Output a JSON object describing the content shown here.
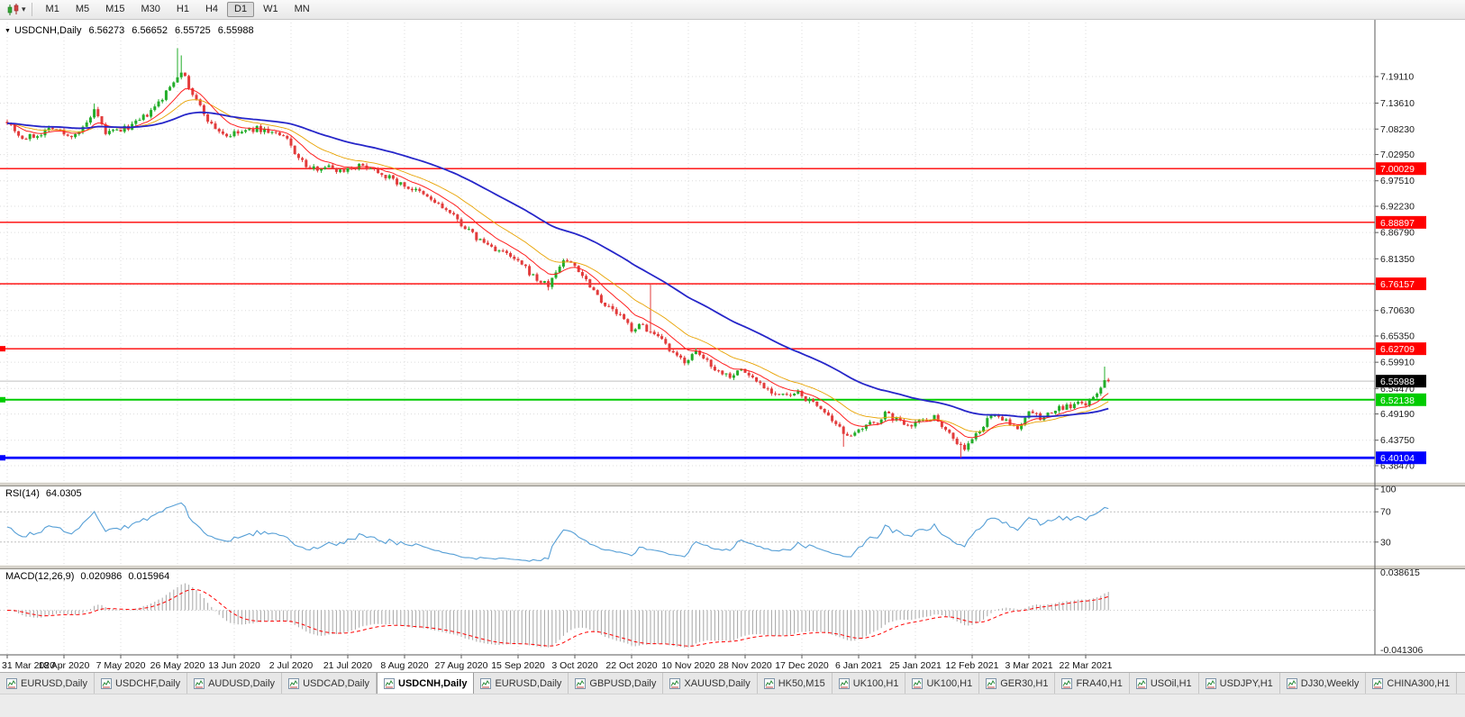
{
  "toolbar": {
    "chart_icon": "candlestick-chart",
    "dropdown_glyph": "▾",
    "timeframes": [
      "M1",
      "M5",
      "M15",
      "M30",
      "H1",
      "H4",
      "D1",
      "W1",
      "MN"
    ],
    "active_timeframe": "D1"
  },
  "chart_header": {
    "collapse_icon": "▼",
    "symbol": "USDCNH,Daily",
    "open": "6.56273",
    "high": "6.56652",
    "low": "6.55725",
    "close": "6.55988"
  },
  "rsi_panel": {
    "label": "RSI(14)",
    "value": "64.0305",
    "axis_labels": [
      "100",
      "70",
      "30"
    ],
    "level_values": [
      100,
      70,
      30
    ],
    "guide_levels": [
      70,
      30
    ],
    "line_color": "#569fd6"
  },
  "macd_panel": {
    "label": "MACD(12,26,9)",
    "value": "0.020986",
    "signal_value": "0.015964",
    "axis_top_label": "0.038615",
    "axis_bottom_label": "-0.041306",
    "histogram_color": "#a6a6a6",
    "signal_color": "#ff0000"
  },
  "colors": {
    "up_candle": "#22ad29",
    "down_candle": "#e23b3b",
    "grid": "#dcdcdc",
    "current_price_line": "#c0c0c0",
    "current_price_badge": "#000000"
  },
  "tabs": [
    "EURUSD,Daily",
    "USDCHF,Daily",
    "AUDUSD,Daily",
    "USDCAD,Daily",
    "USDCNH,Daily",
    "EURUSD,Daily",
    "GBPUSD,Daily",
    "XAUUSD,Daily",
    "HK50,M15",
    "UK100,H1",
    "UK100,H1",
    "GER30,H1",
    "FRA40,H1",
    "USOil,H1",
    "USDJPY,H1",
    "DJ30,Weekly",
    "CHINA300,H1"
  ],
  "active_tab_index": 4,
  "chart_data": {
    "type": "candlestick",
    "title": "USDCNH,Daily",
    "ylim": [
      6.3511,
      7.2975
    ],
    "n_bars": 292,
    "x_label_every": 15,
    "x_labels": [
      "31 Mar 2020",
      "18 Apr 2020",
      "7 May 2020",
      "26 May 2020",
      "13 Jun 2020",
      "2 Jul 2020",
      "21 Jul 2020",
      "8 Aug 2020",
      "27 Aug 2020",
      "15 Sep 2020",
      "3 Oct 2020",
      "22 Oct 2020",
      "10 Nov 2020",
      "28 Nov 2020",
      "17 Dec 2020",
      "6 Jan 2021",
      "25 Jan 2021",
      "12 Feb 2021",
      "3 Mar 2021",
      "22 Mar 2021"
    ],
    "price_grid_values": [
      7.1911,
      7.1361,
      7.0823,
      7.0295,
      6.9751,
      6.9223,
      6.8679,
      6.8135,
      6.7599,
      6.7063,
      6.6535,
      6.5991,
      6.5447,
      6.4919,
      6.4375,
      6.3847
    ],
    "price_grid_labels": [
      "7.19110",
      "7.13610",
      "7.08230",
      "7.02950",
      "6.97510",
      "6.92230",
      "6.86790",
      "6.81350",
      "6.75990",
      "6.70630",
      "6.65350",
      "6.59910",
      "6.54470",
      "6.49190",
      "6.43750",
      "6.38470"
    ],
    "levels": [
      {
        "price": 7.00029,
        "label": "7.00029",
        "color": "#ff0000",
        "width": 1.4,
        "handle": false
      },
      {
        "price": 6.88897,
        "label": "6.88897",
        "color": "#ff0000",
        "width": 1.4,
        "handle": false
      },
      {
        "price": 6.76157,
        "label": "6.76157",
        "color": "#ff0000",
        "width": 1.4,
        "handle": false
      },
      {
        "price": 6.62709,
        "label": "6.62709",
        "color": "#ff0000",
        "width": 1.4,
        "handle": true
      },
      {
        "price": 6.52138,
        "label": "6.52138",
        "color": "#00cc00",
        "width": 2,
        "handle": true
      },
      {
        "price": 6.40104,
        "label": "6.40104",
        "color": "#0000ff",
        "width": 2.8,
        "handle": true
      }
    ],
    "moving_averages": [
      {
        "period": 10,
        "color": "#ff1f1f",
        "width": 1
      },
      {
        "period": 21,
        "color": "#e8a200",
        "width": 0.9
      },
      {
        "period": 55,
        "color": "#2626c9",
        "width": 1.8
      }
    ],
    "rsi": {
      "period": 14,
      "current": 64.0305
    },
    "macd": {
      "fast": 12,
      "slow": 26,
      "signal": 9,
      "value": 0.020986,
      "signal_value": 0.015964,
      "ymax": 0.038615,
      "ymin": -0.041306
    },
    "trend_anchors": [
      [
        0,
        7.1
      ],
      [
        4,
        7.062
      ],
      [
        8,
        7.07
      ],
      [
        12,
        7.088
      ],
      [
        16,
        7.066
      ],
      [
        20,
        7.082
      ],
      [
        23,
        7.118
      ],
      [
        26,
        7.074
      ],
      [
        30,
        7.08
      ],
      [
        34,
        7.094
      ],
      [
        38,
        7.118
      ],
      [
        41,
        7.146
      ],
      [
        44,
        7.182
      ],
      [
        46,
        7.205
      ],
      [
        48,
        7.168
      ],
      [
        51,
        7.128
      ],
      [
        54,
        7.09
      ],
      [
        58,
        7.068
      ],
      [
        62,
        7.076
      ],
      [
        66,
        7.083
      ],
      [
        70,
        7.076
      ],
      [
        74,
        7.06
      ],
      [
        77,
        7.022
      ],
      [
        80,
        6.998
      ],
      [
        84,
        7.006
      ],
      [
        88,
        6.996
      ],
      [
        92,
        7.006
      ],
      [
        96,
        7.004
      ],
      [
        100,
        6.986
      ],
      [
        104,
        6.968
      ],
      [
        108,
        6.954
      ],
      [
        112,
        6.936
      ],
      [
        116,
        6.914
      ],
      [
        120,
        6.886
      ],
      [
        124,
        6.856
      ],
      [
        128,
        6.838
      ],
      [
        132,
        6.822
      ],
      [
        136,
        6.8
      ],
      [
        140,
        6.77
      ],
      [
        143,
        6.758
      ],
      [
        147,
        6.812
      ],
      [
        150,
        6.8
      ],
      [
        154,
        6.76
      ],
      [
        158,
        6.718
      ],
      [
        162,
        6.695
      ],
      [
        165,
        6.668
      ],
      [
        168,
        6.676
      ],
      [
        170,
        6.66
      ],
      [
        173,
        6.642
      ],
      [
        176,
        6.614
      ],
      [
        179,
        6.602
      ],
      [
        182,
        6.618
      ],
      [
        185,
        6.602
      ],
      [
        188,
        6.58
      ],
      [
        191,
        6.572
      ],
      [
        194,
        6.584
      ],
      [
        197,
        6.566
      ],
      [
        200,
        6.55
      ],
      [
        203,
        6.534
      ],
      [
        206,
        6.528
      ],
      [
        209,
        6.534
      ],
      [
        212,
        6.518
      ],
      [
        215,
        6.506
      ],
      [
        218,
        6.472
      ],
      [
        221,
        6.455
      ],
      [
        224,
        6.448
      ],
      [
        227,
        6.466
      ],
      [
        230,
        6.478
      ],
      [
        232,
        6.492
      ],
      [
        234,
        6.484
      ],
      [
        236,
        6.476
      ],
      [
        239,
        6.472
      ],
      [
        242,
        6.48
      ],
      [
        245,
        6.486
      ],
      [
        248,
        6.462
      ],
      [
        251,
        6.432
      ],
      [
        253,
        6.42
      ],
      [
        255,
        6.438
      ],
      [
        257,
        6.458
      ],
      [
        259,
        6.478
      ],
      [
        261,
        6.494
      ],
      [
        263,
        6.482
      ],
      [
        265,
        6.468
      ],
      [
        267,
        6.462
      ],
      [
        269,
        6.486
      ],
      [
        271,
        6.498
      ],
      [
        273,
        6.48
      ],
      [
        275,
        6.49
      ],
      [
        277,
        6.5
      ],
      [
        279,
        6.506
      ],
      [
        281,
        6.508
      ],
      [
        283,
        6.512
      ],
      [
        285,
        6.514
      ],
      [
        287,
        6.522
      ],
      [
        289,
        6.548
      ],
      [
        290,
        6.566
      ],
      [
        291,
        6.55988
      ]
    ],
    "spikes": [
      {
        "i": 23,
        "high": 7.135
      },
      {
        "i": 45,
        "high": 7.25
      },
      {
        "i": 46,
        "high": 7.235
      },
      {
        "i": 143,
        "low": 6.748
      },
      {
        "i": 170,
        "high": 6.762
      },
      {
        "i": 221,
        "low": 6.424
      },
      {
        "i": 252,
        "low": 6.401
      },
      {
        "i": 290,
        "high": 6.59
      }
    ],
    "last_bar": {
      "open": 6.56273,
      "high": 6.56652,
      "low": 6.55725,
      "close": 6.55988
    },
    "seed": 7
  }
}
